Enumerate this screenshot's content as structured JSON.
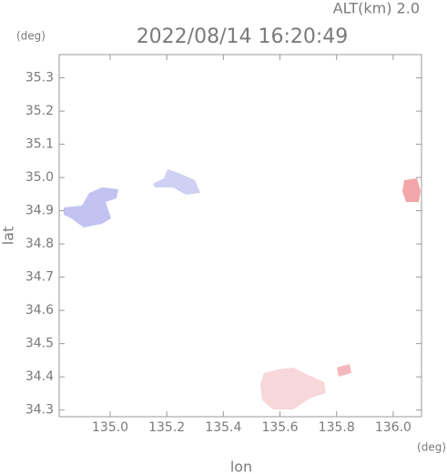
{
  "chart_data": {
    "type": "map",
    "title": "2022/08/14 16:20:49",
    "subtitle": "ALT(km) 2.0",
    "x_label": "lon",
    "y_label": "lat",
    "x_unit": "(deg)",
    "y_unit": "(deg)",
    "xlim": [
      134.82,
      136.1
    ],
    "ylim": [
      34.28,
      35.37
    ],
    "xticks": [
      {
        "value": 135,
        "label": "135.0"
      },
      135.2,
      135.4,
      135.6,
      135.8,
      {
        "value": 136,
        "label": "136.0"
      }
    ],
    "yticks": [
      34.3,
      34.4,
      34.5,
      34.6,
      34.7,
      34.8,
      34.9,
      {
        "value": 35,
        "label": "35.0"
      },
      35.1,
      35.2,
      35.3
    ]
  }
}
